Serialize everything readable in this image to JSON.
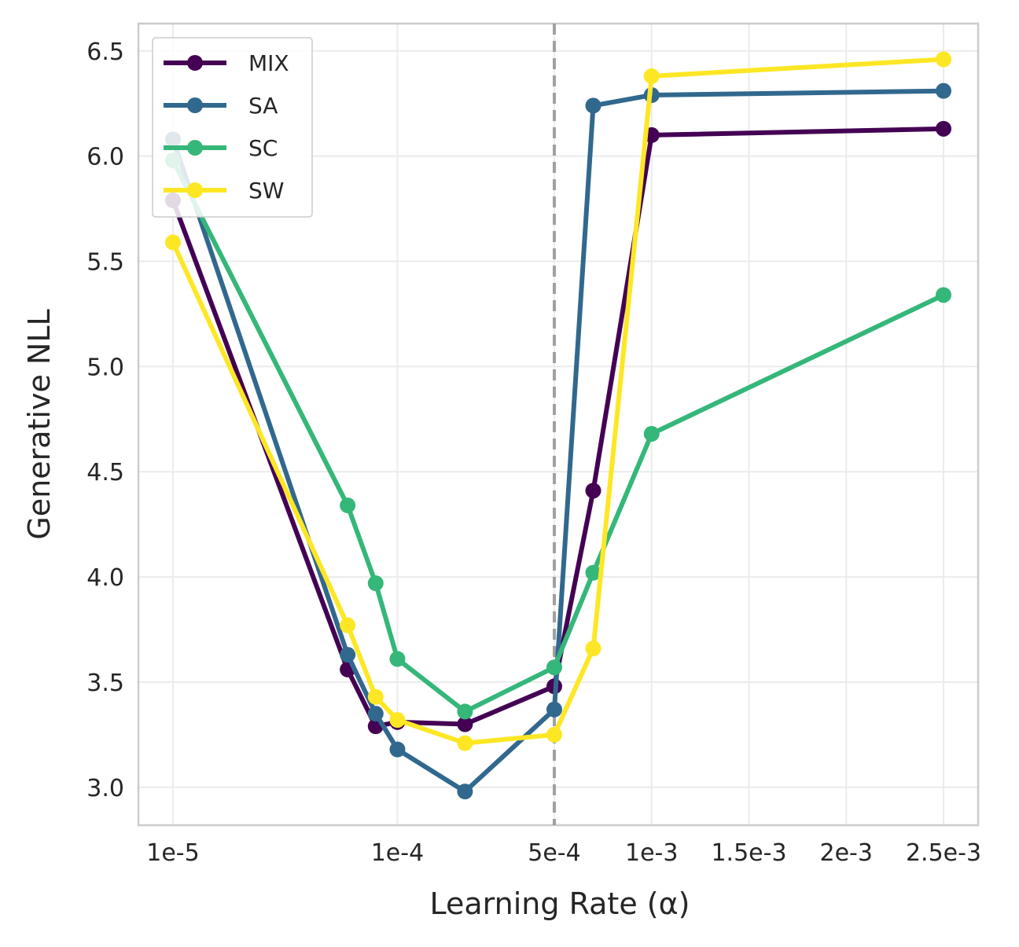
{
  "chart_data": {
    "type": "line",
    "title": "",
    "xlabel": "Learning Rate (α)",
    "ylabel": "Generative NLL",
    "x_tick_labels": [
      "1e-5",
      "1e-4",
      "5e-4",
      "1e-3",
      "1.5e-3",
      "2e-3",
      "2.5e-3"
    ],
    "y_ticks": [
      3.0,
      3.5,
      4.0,
      4.5,
      5.0,
      5.5,
      6.0,
      6.5
    ],
    "y_tick_labels": [
      "3.0",
      "3.5",
      "4.0",
      "4.5",
      "5.0",
      "5.5",
      "6.0",
      "6.5"
    ],
    "ylim": [
      2.82,
      6.63
    ],
    "vline": {
      "x_label": "5e-4",
      "style": "dashed"
    },
    "x": [
      1e-05,
      6e-05,
      8e-05,
      0.0001,
      0.0002,
      0.0005,
      0.0007,
      0.001,
      0.0025
    ],
    "series": [
      {
        "name": "MIX",
        "color": "#440154",
        "values": [
          5.79,
          3.56,
          3.29,
          3.31,
          3.3,
          3.48,
          4.41,
          6.1,
          6.13
        ]
      },
      {
        "name": "SA",
        "color": "#31688e",
        "values": [
          6.08,
          3.63,
          3.35,
          3.18,
          2.98,
          3.37,
          6.24,
          6.29,
          6.31
        ]
      },
      {
        "name": "SC",
        "color": "#35b779",
        "values": [
          5.98,
          4.34,
          3.97,
          3.61,
          3.36,
          3.57,
          4.02,
          4.68,
          5.34
        ]
      },
      {
        "name": "SW",
        "color": "#fde725",
        "values": [
          5.59,
          3.77,
          3.43,
          3.32,
          3.21,
          3.25,
          3.66,
          6.38,
          6.46
        ]
      }
    ],
    "legend_position": "top-left",
    "grid": true
  }
}
